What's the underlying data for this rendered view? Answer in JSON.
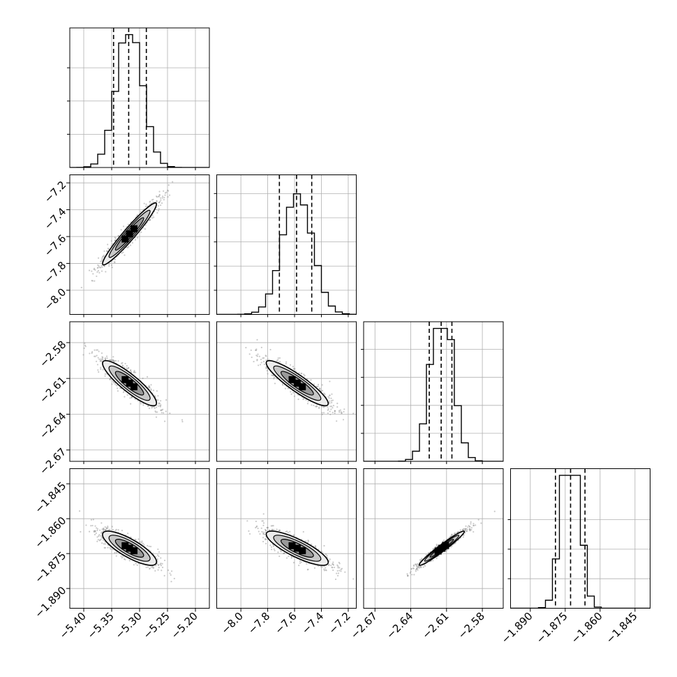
{
  "chart_data": {
    "type": "corner",
    "grid": true,
    "parameters": [
      {
        "range": [
          -5.425,
          -5.175
        ],
        "ticks": [
          -5.4,
          -5.35,
          -5.3,
          -5.25,
          -5.2
        ],
        "tick_labels": [
          "−5.40",
          "−5.35",
          "−5.30",
          "−5.25",
          "−5.20"
        ],
        "quantiles": [
          -5.3466,
          -5.3195,
          -5.2879
        ],
        "mean": -5.318,
        "sd": 0.023,
        "hist_peak": 1.6,
        "hist_ticks": [
          0.4,
          0.8,
          1.2
        ]
      },
      {
        "range": [
          -8.18,
          -7.14
        ],
        "ticks": [
          -8.0,
          -7.8,
          -7.6,
          -7.4,
          -7.2
        ],
        "tick_labels": [
          "−8.0",
          "−7.8",
          "−7.6",
          "−7.4",
          "−7.2"
        ],
        "quantiles": [
          -7.713,
          -7.585,
          -7.472
        ],
        "mean": -7.58,
        "sd": 0.11,
        "hist_peak": 1.1,
        "hist_ticks": [
          0.2,
          0.4,
          0.6,
          0.8,
          1.0
        ]
      },
      {
        "range": [
          -2.6795,
          -2.5625
        ],
        "ticks": [
          -2.67,
          -2.64,
          -2.61,
          -2.58
        ],
        "tick_labels": [
          "−2.67",
          "−2.64",
          "−2.61",
          "−2.58"
        ],
        "quantiles": [
          -2.6245,
          -2.6145,
          -2.6055
        ],
        "mean": -2.614,
        "sd": 0.009,
        "hist_peak": 0.95,
        "hist_ticks": [
          0.2,
          0.4,
          0.6,
          0.8
        ]
      },
      {
        "range": [
          -1.8985,
          -1.8385
        ],
        "ticks": [
          -1.89,
          -1.875,
          -1.86,
          -1.845
        ],
        "tick_labels": [
          "−1.890",
          "−1.875",
          "−1.860",
          "−1.845"
        ],
        "quantiles": [
          -1.8792,
          -1.8727,
          -1.8665
        ],
        "mean": -1.8727,
        "sd": 0.0035,
        "hist_peak": 1.35,
        "hist_ticks": [
          0.3,
          0.6,
          0.9
        ]
      }
    ],
    "correlations": [
      [
        1.0,
        0.96,
        -0.88,
        -0.8
      ],
      [
        0.96,
        1.0,
        -0.9,
        -0.82
      ],
      [
        -0.88,
        -0.9,
        1.0,
        0.97
      ],
      [
        -0.8,
        -0.82,
        0.97,
        1.0
      ]
    ],
    "colors": {
      "line": "#000000",
      "grid": "#b0b0b0",
      "points": "#8a8a8a",
      "dense": "#000000"
    }
  }
}
